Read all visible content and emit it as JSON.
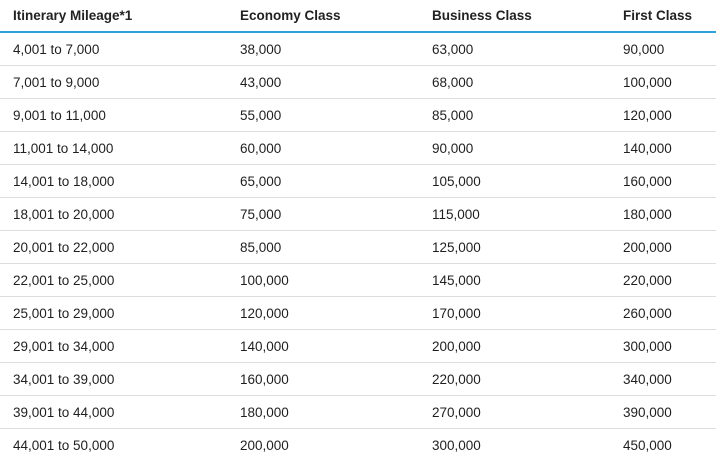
{
  "table": {
    "columns": [
      "Itinerary Mileage*1",
      "Economy Class",
      "Business Class",
      "First Class"
    ],
    "rows": [
      [
        "4,001 to 7,000",
        "38,000",
        "63,000",
        "90,000"
      ],
      [
        "7,001 to 9,000",
        "43,000",
        "68,000",
        "100,000"
      ],
      [
        "9,001 to 11,000",
        "55,000",
        "85,000",
        "120,000"
      ],
      [
        "11,001 to 14,000",
        "60,000",
        "90,000",
        "140,000"
      ],
      [
        "14,001 to 18,000",
        "65,000",
        "105,000",
        "160,000"
      ],
      [
        "18,001 to 20,000",
        "75,000",
        "115,000",
        "180,000"
      ],
      [
        "20,001 to 22,000",
        "85,000",
        "125,000",
        "200,000"
      ],
      [
        "22,001 to 25,000",
        "100,000",
        "145,000",
        "220,000"
      ],
      [
        "25,001 to 29,000",
        "120,000",
        "170,000",
        "260,000"
      ],
      [
        "29,001 to 34,000",
        "140,000",
        "200,000",
        "300,000"
      ],
      [
        "34,001 to 39,000",
        "160,000",
        "220,000",
        "340,000"
      ],
      [
        "39,001 to 44,000",
        "180,000",
        "270,000",
        "390,000"
      ],
      [
        "44,001 to 50,000",
        "200,000",
        "300,000",
        "450,000"
      ]
    ]
  },
  "colors": {
    "header_rule": "#2ea3da",
    "row_divider": "#dddddd",
    "text": "#1f1f1f"
  }
}
